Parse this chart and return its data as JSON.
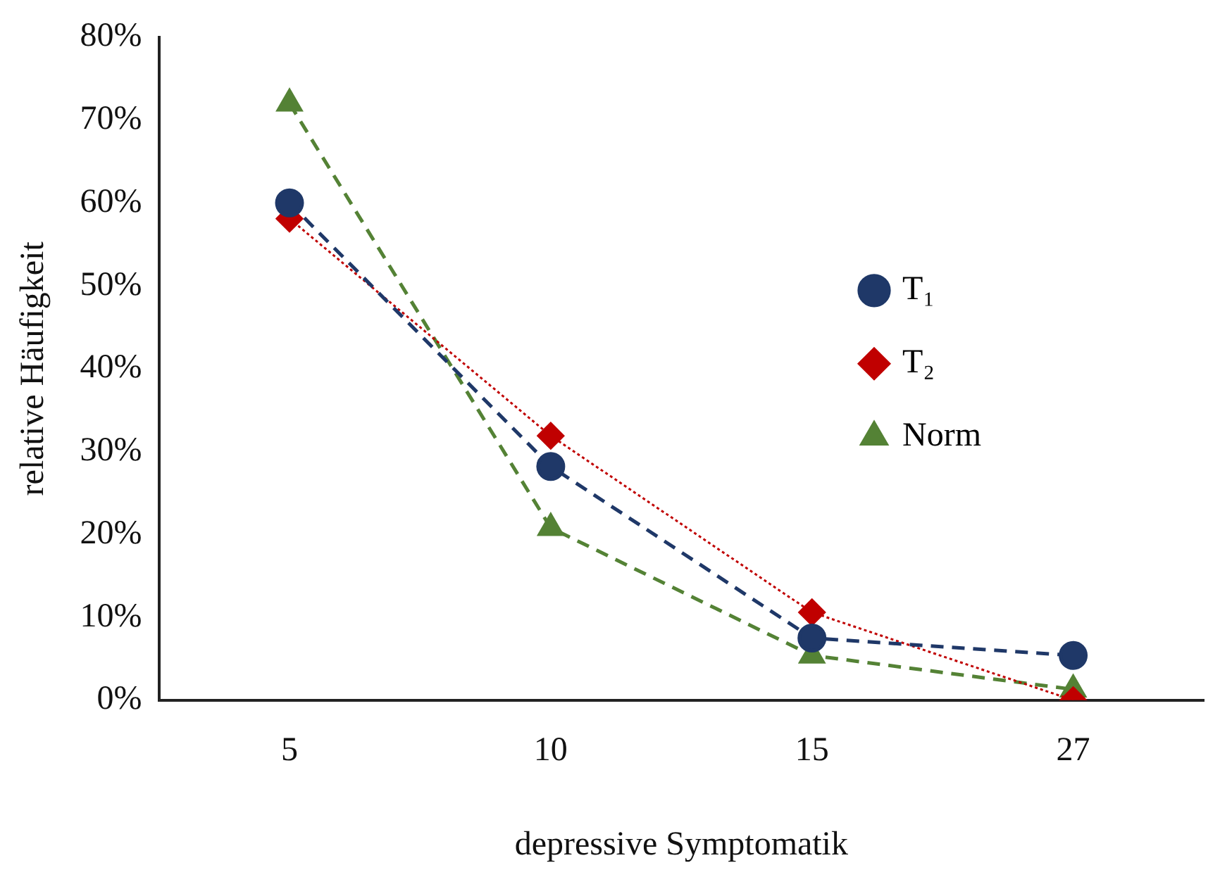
{
  "chart_data": {
    "type": "line",
    "xlabel": "depressive Symptomatik",
    "ylabel": "relative Häufigkeit",
    "categories": [
      "5",
      "10",
      "15",
      "27"
    ],
    "ylim": [
      0,
      80
    ],
    "yticks": [
      {
        "value": 0,
        "label": "0%"
      },
      {
        "value": 10,
        "label": "10%"
      },
      {
        "value": 20,
        "label": "20%"
      },
      {
        "value": 30,
        "label": "30%"
      },
      {
        "value": 40,
        "label": "40%"
      },
      {
        "value": 50,
        "label": "50%"
      },
      {
        "value": 60,
        "label": "60%"
      },
      {
        "value": 70,
        "label": "70%"
      },
      {
        "value": 80,
        "label": "80%"
      }
    ],
    "grid": false,
    "legend": "right",
    "series": [
      {
        "name": "T₁",
        "color": "#1f3868",
        "values": [
          60,
          28.2,
          7.5,
          5.4
        ],
        "marker": "circle",
        "line_style": "dashed"
      },
      {
        "name": "T₂",
        "color": "#c00000",
        "values": [
          58.1,
          31.9,
          10.6,
          0
        ],
        "marker": "diamond",
        "line_style": "dotted"
      },
      {
        "name": "Norm",
        "color": "#548235",
        "values": [
          72,
          20.8,
          5.4,
          1.3
        ],
        "marker": "triangle",
        "line_style": "dashed"
      }
    ]
  }
}
